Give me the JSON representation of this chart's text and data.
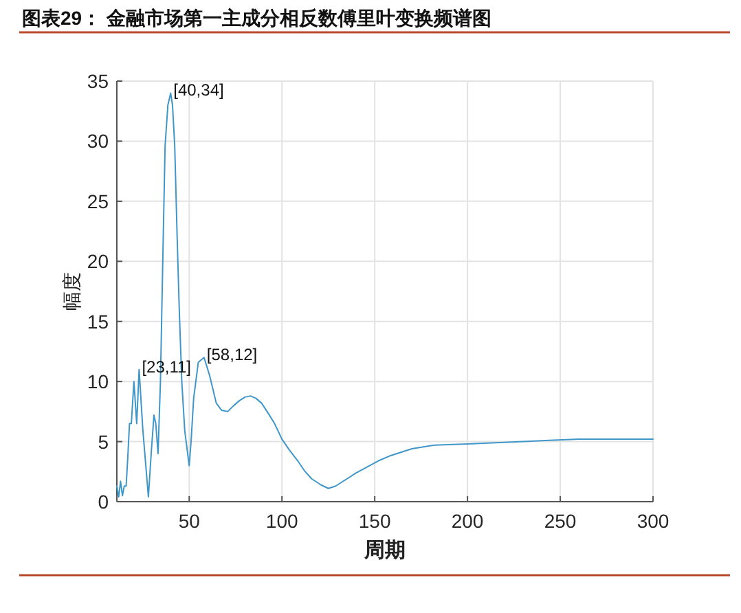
{
  "chart_data": {
    "type": "line",
    "title": "图表29： 金融市场第一主成分相反数傅里叶变换频谱图",
    "xlabel": "周期",
    "ylabel": "幅度",
    "x": [
      11,
      12,
      13,
      14,
      15,
      16,
      17,
      17.8,
      18.8,
      20.2,
      21.7,
      23,
      25,
      28,
      29.5,
      31,
      32,
      33.2,
      34.5,
      36,
      37,
      38.5,
      40,
      41,
      42.2,
      43.5,
      44.6,
      46,
      47.6,
      50,
      51,
      52.4,
      54.9,
      58,
      61,
      64.6,
      67.5,
      70.7,
      74,
      77,
      80,
      83,
      86,
      89,
      92,
      96,
      100,
      104,
      108.5,
      112,
      116,
      121,
      125,
      129,
      133,
      140,
      146,
      152,
      158,
      164,
      170,
      182,
      200,
      215,
      230,
      244,
      260,
      275,
      300
    ],
    "values": [
      1.3,
      0.4,
      1.7,
      0.5,
      1.3,
      1.3,
      4.0,
      6.5,
      6.5,
      10.0,
      6.5,
      11,
      6,
      0.4,
      4,
      7.2,
      6.5,
      4.0,
      10,
      22,
      29.6,
      33,
      34,
      33,
      29.6,
      22,
      16.2,
      10,
      5.9,
      3.0,
      5,
      8.6,
      11.6,
      12,
      10.5,
      8.2,
      7.6,
      7.5,
      8.0,
      8.4,
      8.7,
      8.8,
      8.6,
      8.2,
      7.5,
      6.5,
      5.2,
      4.3,
      3.4,
      2.6,
      1.9,
      1.4,
      1.1,
      1.3,
      1.7,
      2.4,
      2.9,
      3.4,
      3.8,
      4.1,
      4.4,
      4.7,
      4.8,
      4.9,
      5.0,
      5.1,
      5.2,
      5.2,
      5.2
    ],
    "color": "#3f96c8",
    "xlim": [
      11,
      300
    ],
    "xticks": [
      50,
      100,
      150,
      200,
      250,
      300
    ],
    "ylim": [
      0,
      35
    ],
    "yticks": [
      0,
      5,
      10,
      15,
      20,
      25,
      30,
      35
    ],
    "grid": true,
    "annotations": [
      {
        "text": "[23,11]",
        "x": 23,
        "y": 11
      },
      {
        "text": "[40,34]",
        "x": 40,
        "y": 34
      },
      {
        "text": "[58,12]",
        "x": 58,
        "y": 12
      }
    ]
  }
}
